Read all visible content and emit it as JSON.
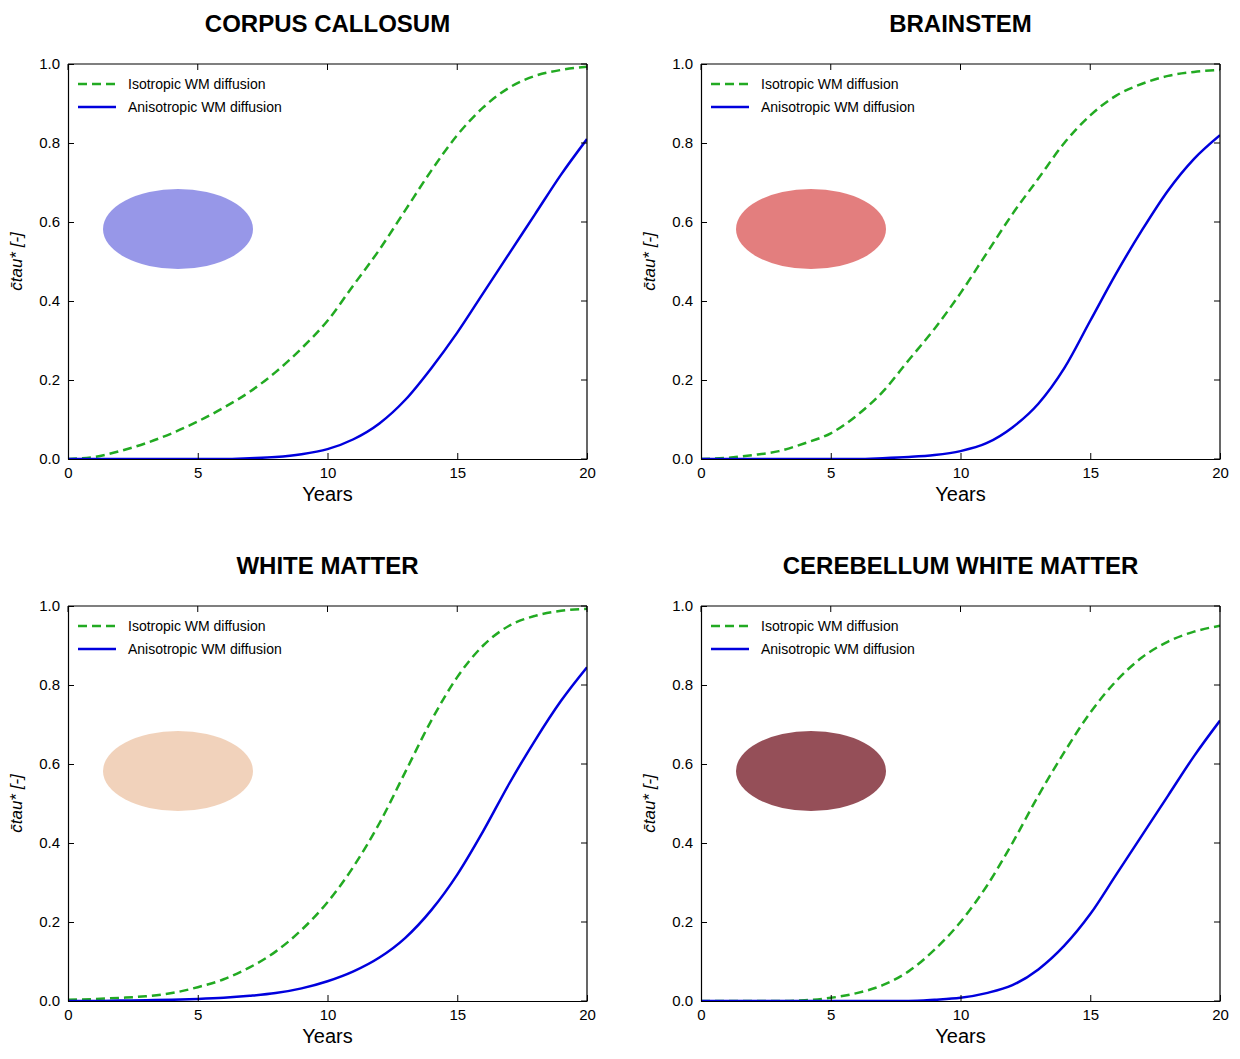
{
  "chart_data": [
    {
      "type": "line",
      "title": "CORPUS CALLOSUM",
      "xlabel": "Years",
      "ylabel": "c̄tau* [-]",
      "x": [
        0,
        1,
        2,
        3,
        4,
        5,
        6,
        7,
        8,
        9,
        10,
        11,
        12,
        13,
        14,
        15,
        16,
        17,
        18,
        19,
        20
      ],
      "series": [
        {
          "name": "Isotropic WM diffusion",
          "color": "#22aa22",
          "line_style": "dashed",
          "values": [
            0,
            0.005,
            0.02,
            0.04,
            0.065,
            0.095,
            0.13,
            0.17,
            0.22,
            0.28,
            0.35,
            0.44,
            0.53,
            0.63,
            0.73,
            0.82,
            0.89,
            0.94,
            0.97,
            0.985,
            0.993
          ]
        },
        {
          "name": "Anisotropic WM diffusion",
          "color": "#0000dd",
          "line_style": "solid",
          "values": [
            0,
            0,
            0,
            0,
            0,
            0,
            0,
            0.002,
            0.005,
            0.012,
            0.025,
            0.05,
            0.09,
            0.15,
            0.23,
            0.32,
            0.42,
            0.52,
            0.62,
            0.72,
            0.81
          ]
        }
      ],
      "xlim": [
        0,
        20
      ],
      "ylim": [
        0,
        1
      ],
      "xticks": [
        0,
        5,
        10,
        15,
        20
      ],
      "yticks": [
        {
          "value": 0,
          "label": "0.0"
        },
        {
          "value": 0.2,
          "label": "0.2"
        },
        {
          "value": 0.4,
          "label": "0.4"
        },
        {
          "value": 0.6,
          "label": "0.6"
        },
        {
          "value": 0.8,
          "label": "0.8"
        },
        {
          "value": 1,
          "label": "1.0"
        }
      ],
      "legend": "upper left"
    },
    {
      "type": "line",
      "title": "BRAINSTEM",
      "xlabel": "Years",
      "ylabel": "c̄tau* [-]",
      "x": [
        0,
        1,
        2,
        3,
        4,
        5,
        6,
        7,
        8,
        9,
        10,
        11,
        12,
        13,
        14,
        15,
        16,
        17,
        18,
        19,
        20
      ],
      "series": [
        {
          "name": "Isotropic WM diffusion",
          "color": "#22aa22",
          "line_style": "dashed",
          "values": [
            0,
            0.003,
            0.01,
            0.02,
            0.04,
            0.065,
            0.11,
            0.17,
            0.25,
            0.33,
            0.42,
            0.52,
            0.62,
            0.71,
            0.8,
            0.87,
            0.92,
            0.95,
            0.97,
            0.98,
            0.985
          ]
        },
        {
          "name": "Anisotropic WM diffusion",
          "color": "#0000dd",
          "line_style": "solid",
          "values": [
            0,
            0,
            0,
            0,
            0,
            0,
            0,
            0.002,
            0.005,
            0.01,
            0.02,
            0.04,
            0.08,
            0.14,
            0.23,
            0.35,
            0.47,
            0.58,
            0.68,
            0.76,
            0.82
          ]
        }
      ],
      "xlim": [
        0,
        20
      ],
      "ylim": [
        0,
        1
      ],
      "xticks": [
        0,
        5,
        10,
        15,
        20
      ],
      "yticks": [
        {
          "value": 0,
          "label": "0.0"
        },
        {
          "value": 0.2,
          "label": "0.2"
        },
        {
          "value": 0.4,
          "label": "0.4"
        },
        {
          "value": 0.6,
          "label": "0.6"
        },
        {
          "value": 0.8,
          "label": "0.8"
        },
        {
          "value": 1,
          "label": "1.0"
        }
      ],
      "legend": "upper left"
    },
    {
      "type": "line",
      "title": "WHITE MATTER",
      "xlabel": "Years",
      "ylabel": "c̄tau* [-]",
      "x": [
        0,
        1,
        2,
        3,
        4,
        5,
        6,
        7,
        8,
        9,
        10,
        11,
        12,
        13,
        14,
        15,
        16,
        17,
        18,
        19,
        20
      ],
      "series": [
        {
          "name": "Isotropic WM diffusion",
          "color": "#22aa22",
          "line_style": "dashed",
          "values": [
            0.003,
            0.005,
            0.008,
            0.012,
            0.02,
            0.035,
            0.055,
            0.085,
            0.125,
            0.18,
            0.25,
            0.34,
            0.45,
            0.58,
            0.71,
            0.82,
            0.9,
            0.95,
            0.975,
            0.988,
            0.993
          ]
        },
        {
          "name": "Anisotropic WM diffusion",
          "color": "#0000dd",
          "line_style": "solid",
          "values": [
            0,
            0,
            0.001,
            0.002,
            0.003,
            0.005,
            0.008,
            0.013,
            0.02,
            0.032,
            0.05,
            0.075,
            0.11,
            0.16,
            0.23,
            0.32,
            0.43,
            0.55,
            0.66,
            0.76,
            0.845
          ]
        }
      ],
      "xlim": [
        0,
        20
      ],
      "ylim": [
        0,
        1
      ],
      "xticks": [
        0,
        5,
        10,
        15,
        20
      ],
      "yticks": [
        {
          "value": 0,
          "label": "0.0"
        },
        {
          "value": 0.2,
          "label": "0.2"
        },
        {
          "value": 0.4,
          "label": "0.4"
        },
        {
          "value": 0.6,
          "label": "0.6"
        },
        {
          "value": 0.8,
          "label": "0.8"
        },
        {
          "value": 1,
          "label": "1.0"
        }
      ],
      "legend": "upper left"
    },
    {
      "type": "line",
      "title": "CEREBELLUM WHITE MATTER",
      "xlabel": "Years",
      "ylabel": "c̄tau* [-]",
      "x": [
        0,
        1,
        2,
        3,
        4,
        5,
        6,
        7,
        8,
        9,
        10,
        11,
        12,
        13,
        14,
        15,
        16,
        17,
        18,
        19,
        20
      ],
      "series": [
        {
          "name": "Isotropic WM diffusion",
          "color": "#22aa22",
          "line_style": "dashed",
          "values": [
            0,
            0,
            0,
            0,
            0.002,
            0.008,
            0.02,
            0.04,
            0.075,
            0.13,
            0.2,
            0.29,
            0.4,
            0.52,
            0.63,
            0.73,
            0.81,
            0.87,
            0.91,
            0.935,
            0.95
          ]
        },
        {
          "name": "Anisotropic WM diffusion",
          "color": "#0000dd",
          "line_style": "solid",
          "values": [
            0,
            0,
            0,
            0,
            0,
            0,
            0,
            0,
            0,
            0.003,
            0.008,
            0.02,
            0.04,
            0.08,
            0.14,
            0.22,
            0.32,
            0.42,
            0.52,
            0.62,
            0.71
          ]
        }
      ],
      "xlim": [
        0,
        20
      ],
      "ylim": [
        0,
        1
      ],
      "xticks": [
        0,
        5,
        10,
        15,
        20
      ],
      "yticks": [
        {
          "value": 0,
          "label": "0.0"
        },
        {
          "value": 0.2,
          "label": "0.2"
        },
        {
          "value": 0.4,
          "label": "0.4"
        },
        {
          "value": 0.6,
          "label": "0.6"
        },
        {
          "value": 0.8,
          "label": "0.8"
        },
        {
          "value": 1,
          "label": "1.0"
        }
      ],
      "legend": "upper left"
    }
  ]
}
